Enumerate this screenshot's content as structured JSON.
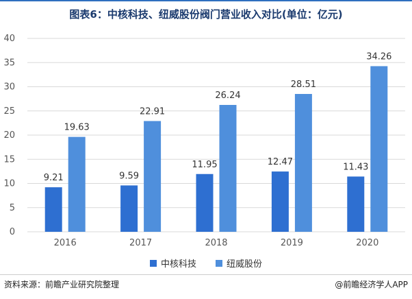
{
  "title": "图表6：中核科技、纽威股份阀门营业收入对比(单位：亿元)",
  "source": "资料来源：前瞻产业研究院整理",
  "brand": "@前瞻经济学人APP",
  "colors": {
    "series1": "#2e6fd1",
    "series2": "#4f8fdc",
    "grid": "#d9d9d9",
    "axis_text": "#555555",
    "label_text": "#333333"
  },
  "chart_data": {
    "type": "bar",
    "categories": [
      "2016",
      "2017",
      "2018",
      "2019",
      "2020"
    ],
    "series": [
      {
        "name": "中核科技",
        "values": [
          9.21,
          9.59,
          11.95,
          12.47,
          11.43
        ]
      },
      {
        "name": "纽威股份",
        "values": [
          19.63,
          22.91,
          26.24,
          28.51,
          34.26
        ]
      }
    ],
    "ylim": [
      0,
      40
    ],
    "yticks": [
      0,
      5,
      10,
      15,
      20,
      25,
      30,
      35,
      40
    ],
    "grid": true,
    "legend": "bottom"
  }
}
